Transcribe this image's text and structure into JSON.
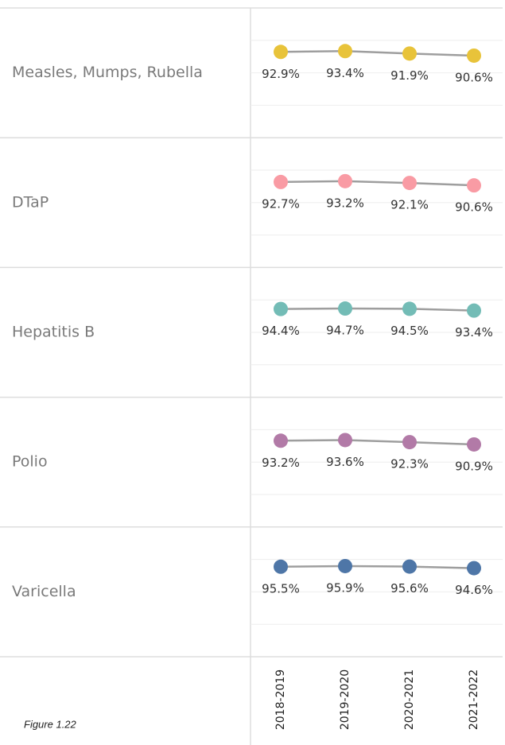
{
  "chart_data": {
    "type": "line",
    "categories": [
      "2018-2019",
      "2019-2020",
      "2020-2021",
      "2021-2022"
    ],
    "ylim": [
      40,
      120
    ],
    "yticks": [
      60,
      80,
      100
    ],
    "grid": true,
    "line_color": "#9e9e9e",
    "series": [
      {
        "name": "Measles, Mumps, Rubella",
        "color": "#e8c33a",
        "values": [
          92.9,
          93.4,
          91.9,
          90.6
        ],
        "value_labels": [
          "92.9%",
          "93.4%",
          "91.9%",
          "90.6%"
        ]
      },
      {
        "name": "DTaP",
        "color": "#f99ba4",
        "values": [
          92.7,
          93.2,
          92.1,
          90.6
        ],
        "value_labels": [
          "92.7%",
          "93.2%",
          "92.1%",
          "90.6%"
        ]
      },
      {
        "name": "Hepatitis B",
        "color": "#73bcb6",
        "values": [
          94.4,
          94.7,
          94.5,
          93.4
        ],
        "value_labels": [
          "94.4%",
          "94.7%",
          "94.5%",
          "93.4%"
        ]
      },
      {
        "name": "Polio",
        "color": "#b27aa7",
        "values": [
          93.2,
          93.6,
          92.3,
          90.9
        ],
        "value_labels": [
          "93.2%",
          "93.6%",
          "92.3%",
          "90.9%"
        ]
      },
      {
        "name": "Varicella",
        "color": "#4e76a7",
        "values": [
          95.5,
          95.9,
          95.6,
          94.6
        ],
        "value_labels": [
          "95.5%",
          "95.9%",
          "95.6%",
          "94.6%"
        ]
      }
    ],
    "caption": "Figure 1.22"
  }
}
